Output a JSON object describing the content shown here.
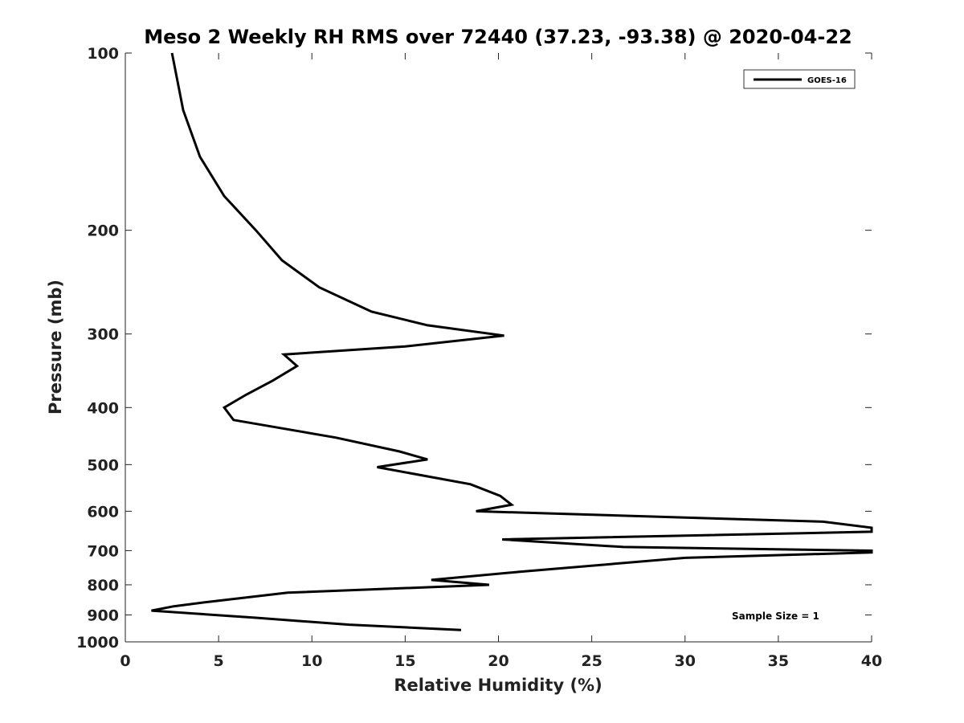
{
  "chart_data": {
    "type": "line",
    "title": "Meso 2 Weekly RH RMS over 72440 (37.23, -93.38) @ 2020-04-22",
    "xlabel": "Relative Humidity (%)",
    "ylabel": "Pressure (mb)",
    "xlim": [
      0,
      40
    ],
    "ylim": [
      1000,
      100
    ],
    "y_scale": "log",
    "x_ticks": [
      0,
      5,
      10,
      15,
      20,
      25,
      30,
      35,
      40
    ],
    "y_ticks": [
      100,
      200,
      300,
      400,
      500,
      600,
      700,
      800,
      900,
      1000
    ],
    "grid": false,
    "legend_position": "top-right",
    "annotation": "Sample Size = 1",
    "series": [
      {
        "name": "GOES-16",
        "color": "#000000",
        "x": [
          2.5,
          3.1,
          4.0,
          5.3,
          7.0,
          8.4,
          10.4,
          13.2,
          16.2,
          20.3,
          15.0,
          8.5,
          9.2,
          7.9,
          6.5,
          5.3,
          5.8,
          11.3,
          14.7,
          16.2,
          13.5,
          18.5,
          20.1,
          20.7,
          18.8,
          37.4,
          40.0,
          40.0,
          20.2,
          26.7,
          40.0,
          40.0,
          30.0,
          21.2,
          16.4,
          19.5,
          8.7,
          4.5,
          2.6,
          1.4,
          7.0,
          12.0,
          18.0
        ],
        "y": [
          100,
          125,
          150,
          175,
          200,
          225,
          250,
          275,
          290,
          302,
          315,
          325,
          340,
          360,
          380,
          400,
          420,
          450,
          475,
          490,
          505,
          540,
          565,
          585,
          600,
          625,
          640,
          650,
          670,
          690,
          700,
          705,
          720,
          760,
          785,
          800,
          825,
          855,
          870,
          885,
          910,
          935,
          955
        ]
      }
    ]
  }
}
